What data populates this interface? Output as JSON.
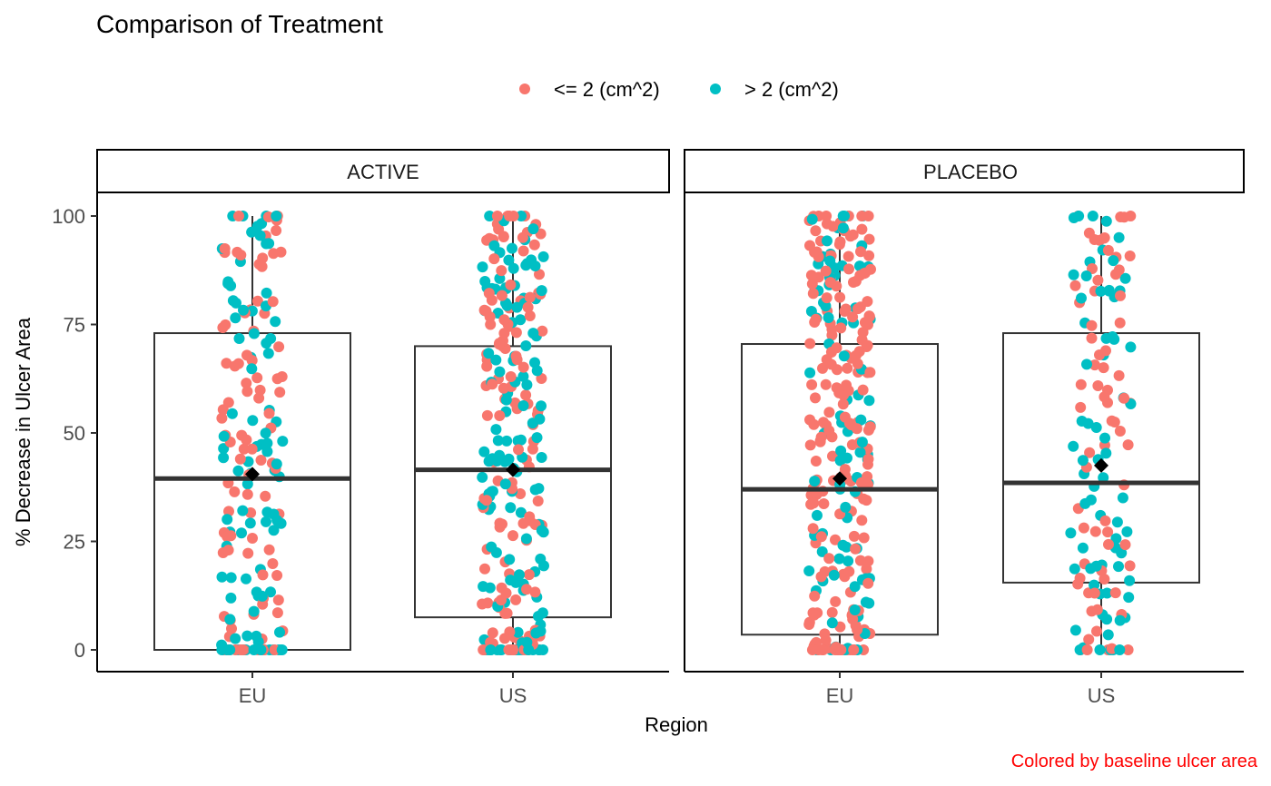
{
  "chart_data": {
    "type": "boxplot",
    "title": "Comparison of Treatment",
    "xlabel": "Region",
    "ylabel": "% Decrease in Ulcer Area",
    "caption": "Colored by baseline ulcer area",
    "ylim": [
      -5,
      105
    ],
    "yticks": [
      0,
      25,
      50,
      75,
      100
    ],
    "legend": {
      "position": "top",
      "entries": [
        {
          "label": "<= 2 (cm^2)",
          "color": "#F8766D"
        },
        {
          "label": "> 2 (cm^2)",
          "color": "#00BFC4"
        }
      ]
    },
    "colors": {
      "caption": "#FF0000",
      "mean_marker": "#000000"
    },
    "grid": false,
    "categories": [
      "EU",
      "US"
    ],
    "facets": [
      {
        "label": "ACTIVE",
        "boxes": [
          {
            "category": "EU",
            "q1": 0,
            "median": 39.5,
            "q3": 73,
            "whisker_low": 0,
            "whisker_high": 100,
            "mean": 40.5,
            "n_small": 95,
            "n_large": 95
          },
          {
            "category": "US",
            "q1": 7.5,
            "median": 41.5,
            "q3": 70,
            "whisker_low": 0,
            "whisker_high": 100,
            "mean": 41.5,
            "n_small": 135,
            "n_large": 135
          }
        ]
      },
      {
        "label": "PLACEBO",
        "boxes": [
          {
            "category": "EU",
            "q1": 3.5,
            "median": 37,
            "q3": 70.5,
            "whisker_low": 0,
            "whisker_high": 100,
            "mean": 39.5,
            "n_small": 210,
            "n_large": 90
          },
          {
            "category": "US",
            "q1": 15.5,
            "median": 38.5,
            "q3": 73,
            "whisker_low": 0,
            "whisker_high": 100,
            "mean": 42.5,
            "n_small": 70,
            "n_large": 70
          }
        ]
      }
    ]
  }
}
